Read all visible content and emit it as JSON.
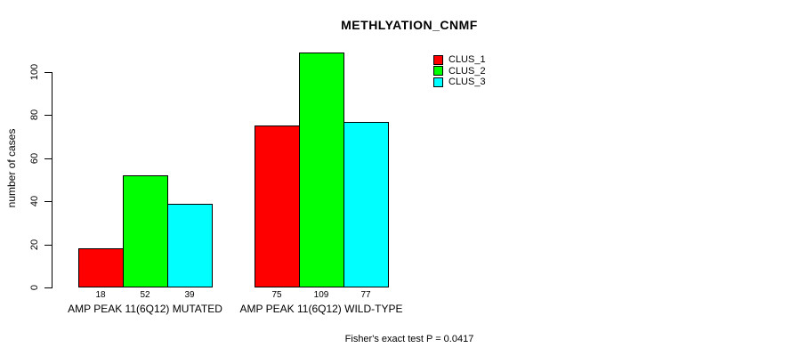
{
  "chart_data": {
    "type": "bar",
    "title": "METHLYATION_CNMF",
    "ylabel": "number of cases",
    "xlabel": "",
    "annotation": "Fisher's exact test P = 0.0417",
    "categories": [
      "AMP PEAK 11(6Q12) MUTATED",
      "AMP PEAK 11(6Q12) WILD-TYPE"
    ],
    "series": [
      {
        "name": "CLUS_1",
        "color": "#ff0000",
        "values": [
          18,
          75
        ]
      },
      {
        "name": "CLUS_2",
        "color": "#00ff00",
        "values": [
          52,
          109
        ]
      },
      {
        "name": "CLUS_3",
        "color": "#00ffff",
        "values": [
          39,
          77
        ]
      }
    ],
    "value_labels": [
      [
        18,
        52,
        39
      ],
      [
        75,
        109,
        77
      ]
    ],
    "yticks": [
      0,
      20,
      40,
      60,
      80,
      100
    ],
    "ylim": [
      0,
      110
    ],
    "grid": false,
    "legend_position": "top-right",
    "bar_border_color": "#000000",
    "text_color": "#000000",
    "background_color": "#ffffff"
  }
}
